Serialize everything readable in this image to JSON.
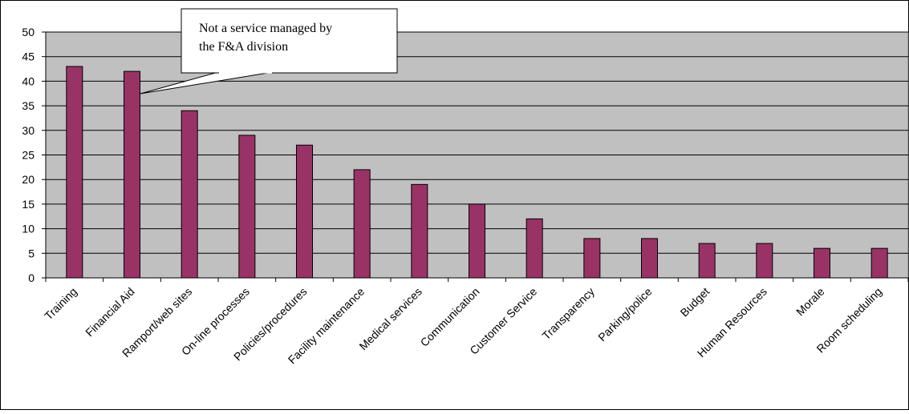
{
  "chart_data": {
    "type": "bar",
    "title": "",
    "xlabel": "",
    "ylabel": "",
    "ylim": [
      0,
      50
    ],
    "yticks": [
      0,
      5,
      10,
      15,
      20,
      25,
      30,
      35,
      40,
      45,
      50
    ],
    "grid": true,
    "legend": "none",
    "categories": [
      "Training",
      "Financial Aid",
      "Ramport/web sites",
      "On-line processes",
      "Policies/procedures",
      "Facility maintenance",
      "Medical services",
      "Communication",
      "Customer Service",
      "Transparency",
      "Parking/police",
      "Budget",
      "Human Resources",
      "Morale",
      "Room scheduling"
    ],
    "values": [
      43,
      42,
      34,
      29,
      27,
      22,
      19,
      15,
      12,
      8,
      8,
      7,
      7,
      6,
      6
    ],
    "bar_color": "#993366",
    "plot_background": "#c0c0c0",
    "annotation": {
      "lines": [
        "Not a service managed by",
        "the F&A division"
      ],
      "points_to": "Financial Aid"
    }
  }
}
